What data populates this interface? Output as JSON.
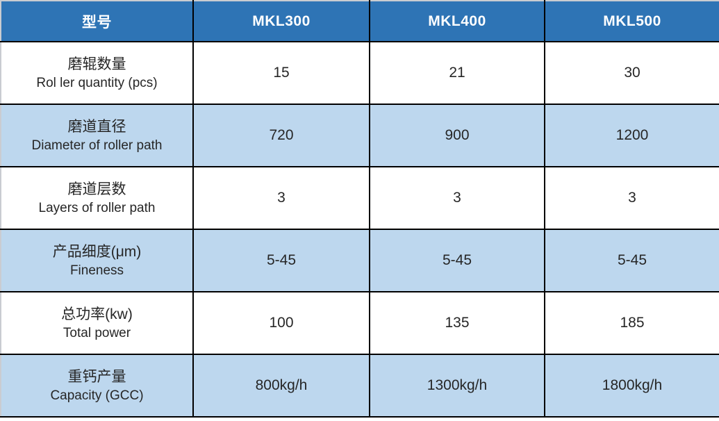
{
  "colors": {
    "header_bg": "#2e74b5",
    "header_text": "#ffffff",
    "row_alt_bg": "#bdd7ee",
    "row_bg": "#ffffff",
    "grid_border": "#000000",
    "body_text": "#262626"
  },
  "table": {
    "header": {
      "label": "型号",
      "models": [
        "MKL300",
        "MKL400",
        "MKL500"
      ]
    },
    "rows": [
      {
        "label_zh": "磨辊数量",
        "label_en": "Rol ler quantity (pcs)",
        "values": [
          "15",
          "21",
          "30"
        ]
      },
      {
        "label_zh": "磨道直径",
        "label_en": "Diameter of roller path",
        "values": [
          "720",
          "900",
          "1200"
        ]
      },
      {
        "label_zh": "磨道层数",
        "label_en": "Layers of roller path",
        "values": [
          "3",
          "3",
          "3"
        ]
      },
      {
        "label_zh": "产品细度(μm)",
        "label_en": "Fineness",
        "values": [
          "5-45",
          "5-45",
          "5-45"
        ]
      },
      {
        "label_zh": "总功率(kw)",
        "label_en": "Total power",
        "values": [
          "100",
          "135",
          "185"
        ]
      },
      {
        "label_zh": "重钙产量",
        "label_en": "Capacity (GCC)",
        "values": [
          "800kg/h",
          "1300kg/h",
          "1800kg/h"
        ]
      }
    ]
  }
}
